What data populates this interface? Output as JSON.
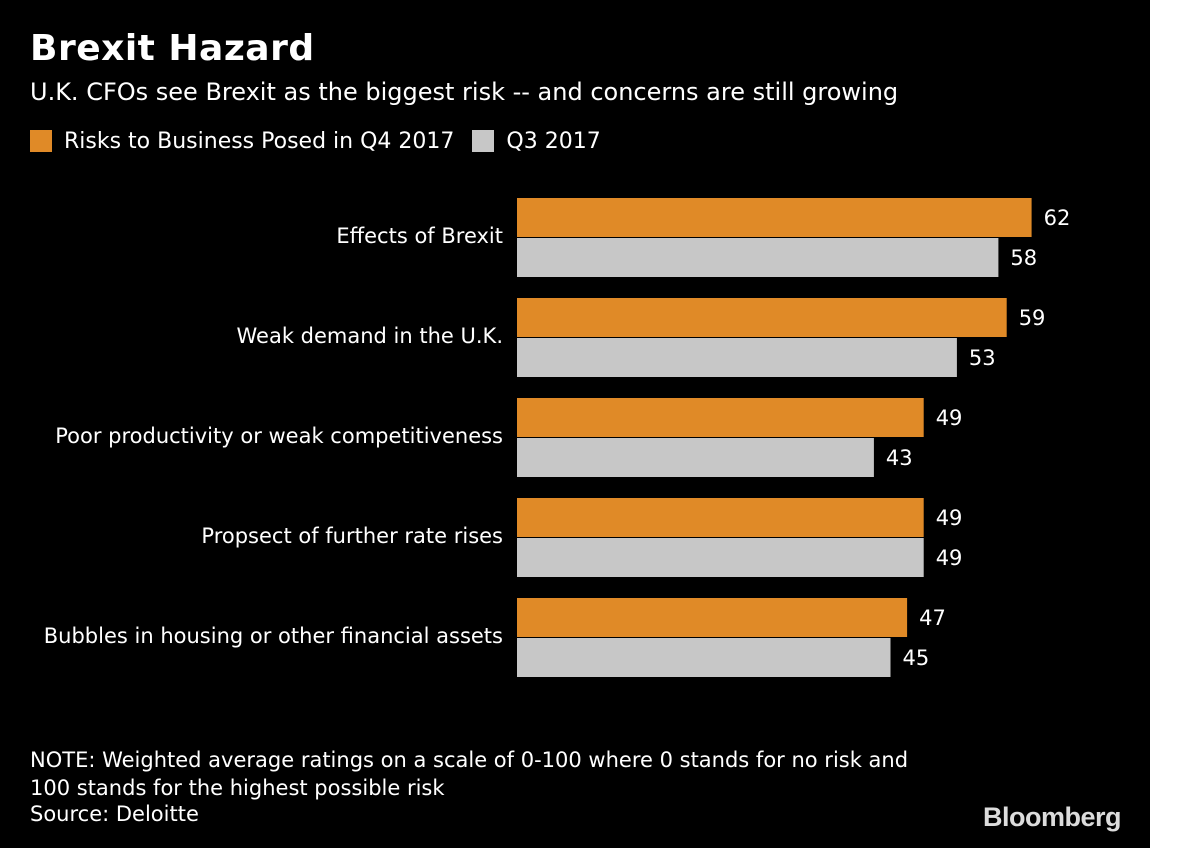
{
  "chart_data": {
    "type": "bar",
    "orientation": "horizontal",
    "title": "Brexit Hazard",
    "subtitle": "U.K. CFOs see Brexit as the biggest risk -- and concerns are still growing",
    "categories": [
      "Effects of Brexit",
      "Weak demand in the U.K.",
      "Poor productivity or weak competitiveness",
      "Propsect of further rate rises",
      "Bubbles in housing or other financial assets"
    ],
    "series": [
      {
        "name": "Risks to Business Posed in Q4 2017",
        "color": "#e08a27",
        "values": [
          62,
          59,
          49,
          49,
          47
        ]
      },
      {
        "name": "Q3 2017",
        "color": "#c7c7c7",
        "values": [
          58,
          53,
          43,
          49,
          45
        ]
      }
    ],
    "xlim": [
      0,
      62
    ],
    "xlabel": "",
    "ylabel": "",
    "grid": false,
    "legend": "top-left"
  },
  "note": {
    "line1": "NOTE: Weighted average ratings on a scale of 0-100 where 0 stands for no risk and",
    "line2": "100 stands for the highest possible risk"
  },
  "source": "Source: Deloitte",
  "brand": "Bloomberg",
  "colors": {
    "background": "#000000",
    "text": "#ffffff",
    "brand": "#dcdcdc"
  }
}
